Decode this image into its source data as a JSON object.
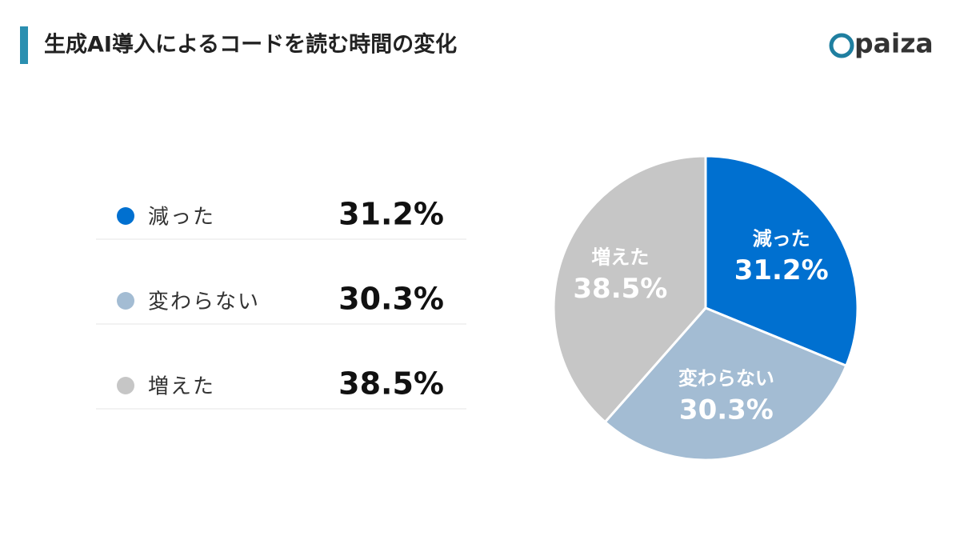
{
  "chart_data": {
    "type": "pie",
    "title": "生成AI導入によるコードを読む時間の変化",
    "logo": "paiza",
    "categories": [
      "減った",
      "変わらない",
      "増えた"
    ],
    "values": [
      31.2,
      30.3,
      38.5
    ],
    "value_labels": [
      "31.2%",
      "30.3%",
      "38.5%"
    ],
    "colors": [
      "#0070d0",
      "#a3bcd3",
      "#c6c6c6"
    ]
  }
}
